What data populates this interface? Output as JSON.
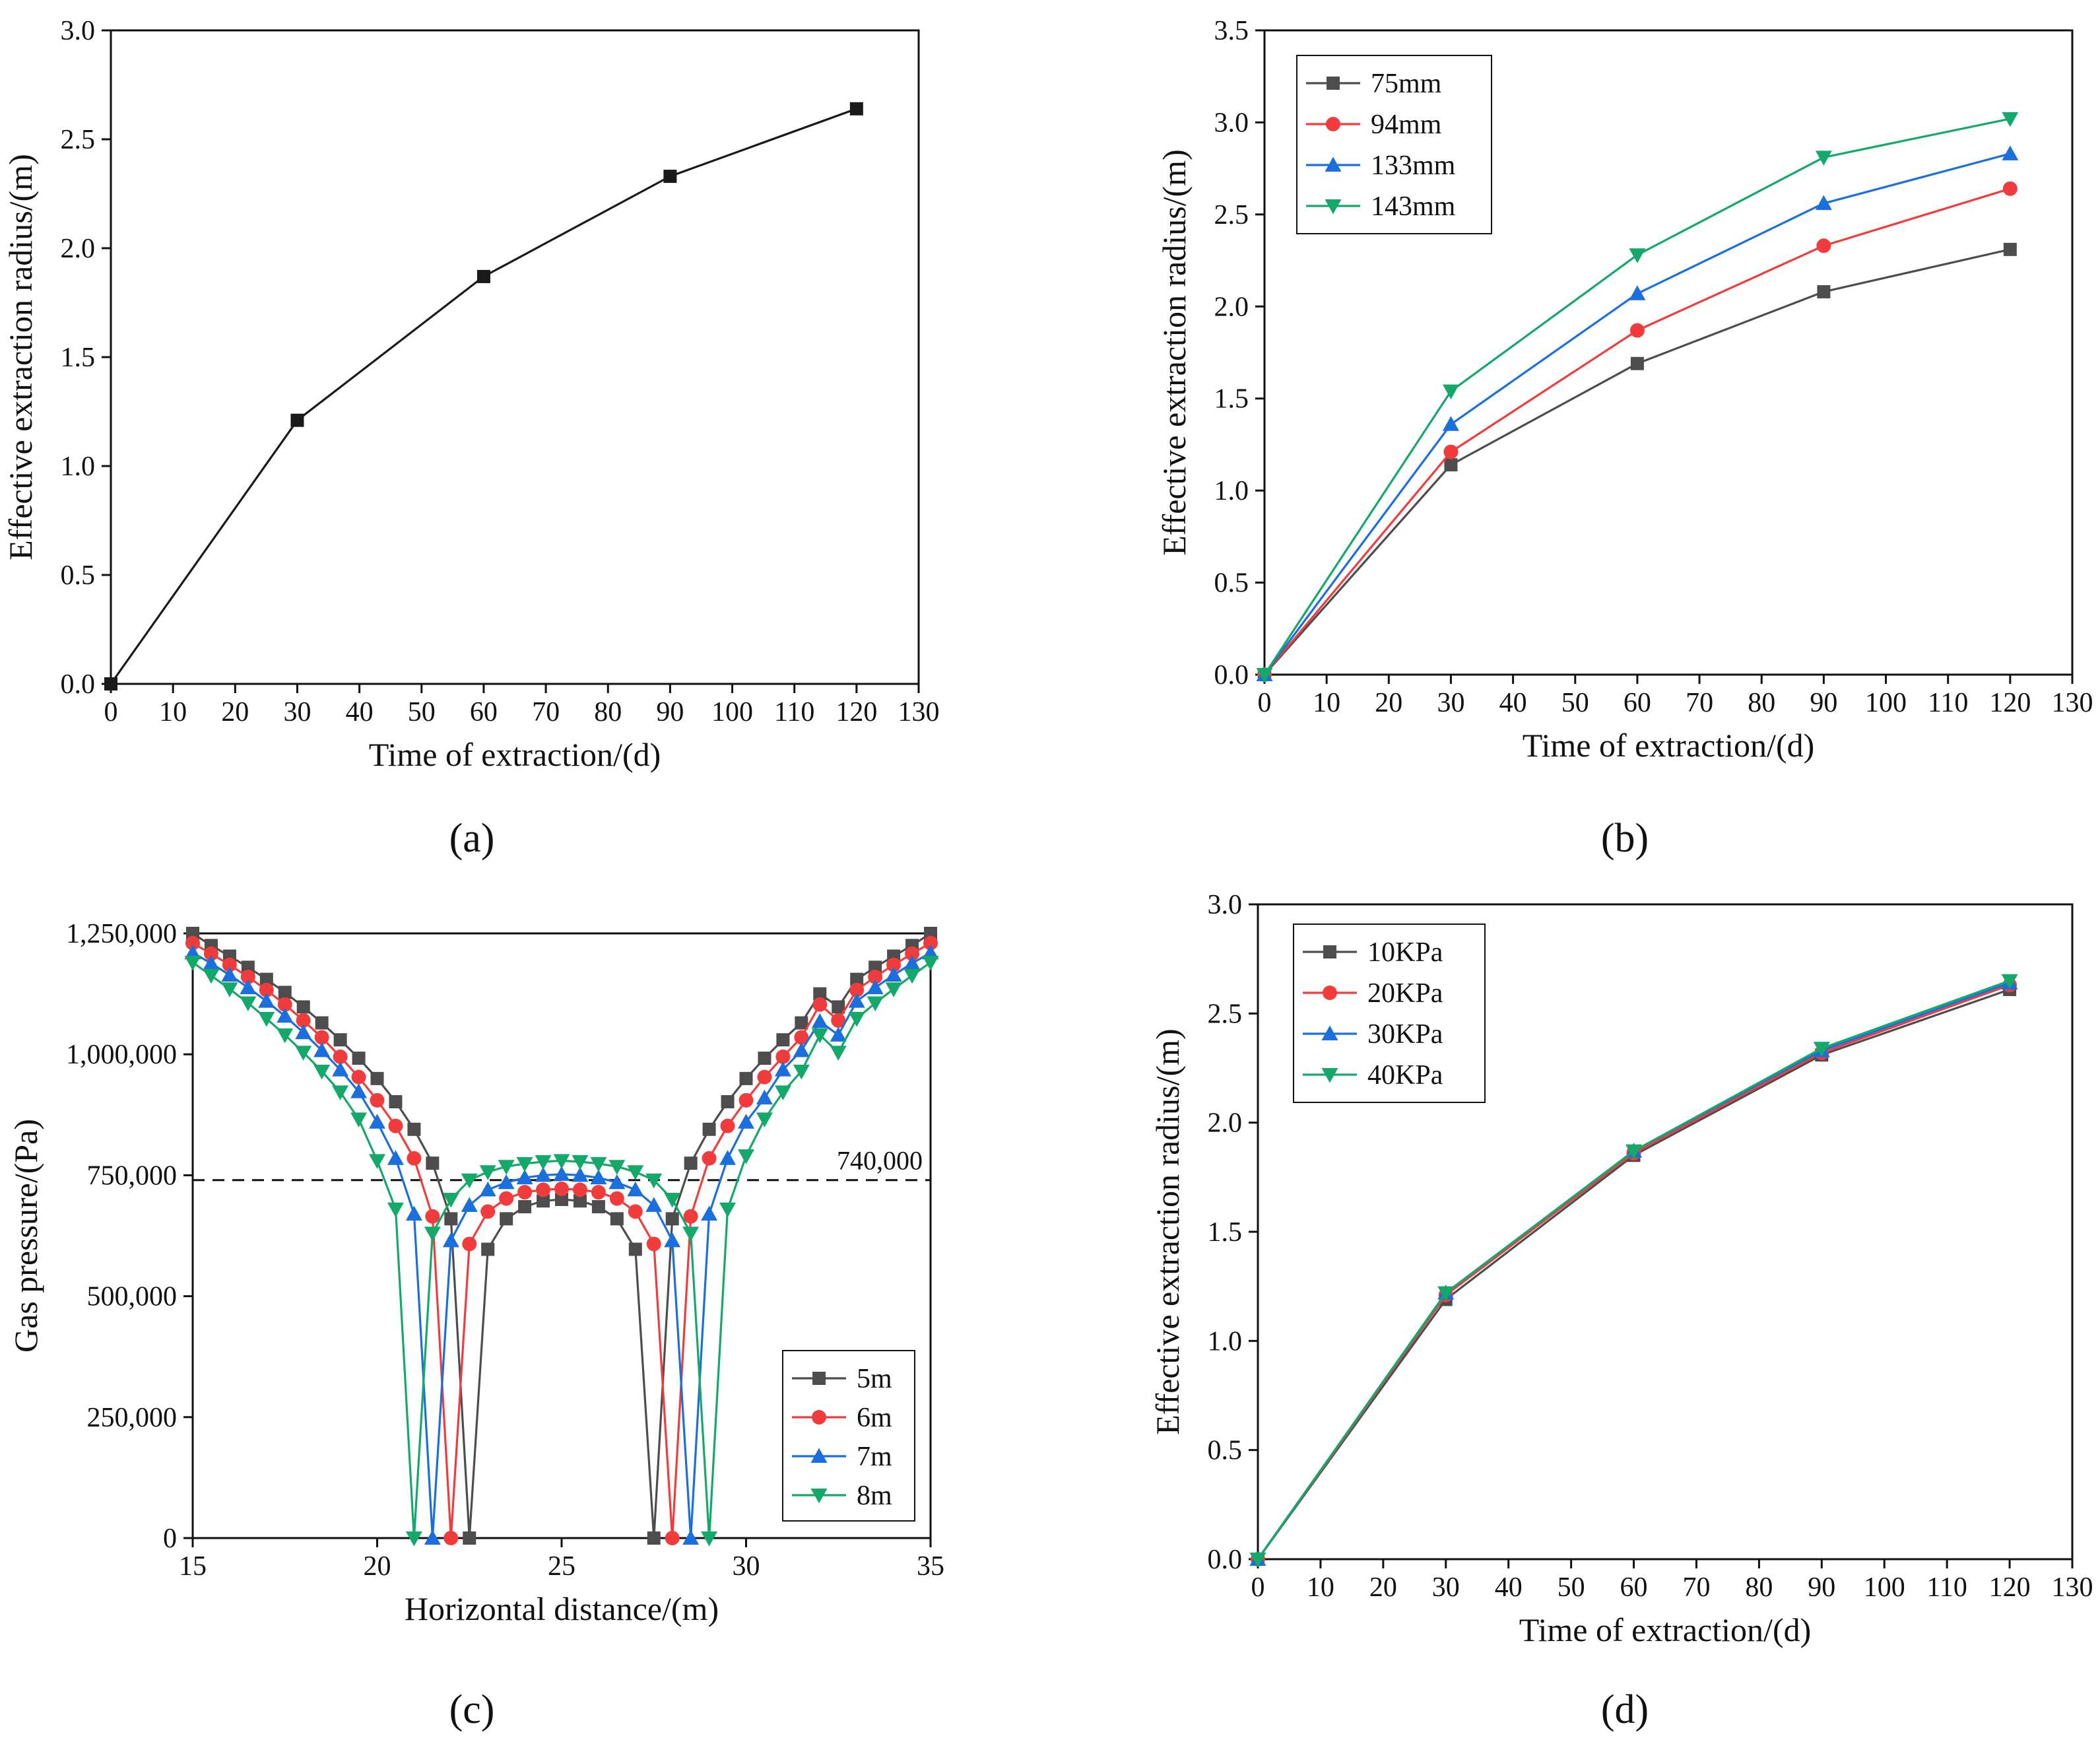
{
  "figure": {
    "panel_labels": [
      "(a)",
      "(b)",
      "(c)",
      "(d)"
    ],
    "colors": {
      "axis": "#111111",
      "black": "#1a1a1a",
      "gray": "#4d4d4d",
      "red": "#f03c3c",
      "blue": "#1a6fdc",
      "green": "#14a86a"
    }
  },
  "chart_data": [
    {
      "panel": "(a)",
      "type": "line",
      "xlabel": "Time of extraction/(d)",
      "ylabel": "Effective extraction radius/(m)",
      "xlim": [
        0,
        130
      ],
      "ylim": [
        0,
        3.0
      ],
      "xticks": [
        0,
        10,
        20,
        30,
        40,
        50,
        60,
        70,
        80,
        90,
        100,
        110,
        120,
        130
      ],
      "yticks": [
        0,
        0.5,
        1.0,
        1.5,
        2.0,
        2.5,
        3.0
      ],
      "xtick_labels": [
        "0",
        "10",
        "20",
        "30",
        "40",
        "50",
        "60",
        "70",
        "80",
        "90",
        "100",
        "110",
        "120",
        "130"
      ],
      "ytick_labels": [
        "0.0",
        "0.5",
        "1.0",
        "1.5",
        "2.0",
        "2.5",
        "3.0"
      ],
      "legend": null,
      "series": [
        {
          "name": "radius",
          "color": "#1a1a1a",
          "marker": "square",
          "x": [
            0,
            30,
            60,
            90,
            120
          ],
          "y": [
            0,
            1.21,
            1.87,
            2.33,
            2.64
          ]
        }
      ]
    },
    {
      "panel": "(b)",
      "type": "line",
      "xlabel": "Time of extraction/(d)",
      "ylabel": "Effective extraction radius/(m)",
      "xlim": [
        0,
        130
      ],
      "ylim": [
        0,
        3.5
      ],
      "xticks": [
        0,
        10,
        20,
        30,
        40,
        50,
        60,
        70,
        80,
        90,
        100,
        110,
        120,
        130
      ],
      "yticks": [
        0,
        0.5,
        1.0,
        1.5,
        2.0,
        2.5,
        3.0,
        3.5
      ],
      "xtick_labels": [
        "0",
        "10",
        "20",
        "30",
        "40",
        "50",
        "60",
        "70",
        "80",
        "90",
        "100",
        "110",
        "120",
        "130"
      ],
      "ytick_labels": [
        "0.0",
        "0.5",
        "1.0",
        "1.5",
        "2.0",
        "2.5",
        "3.0",
        "3.5"
      ],
      "legend": "top-left",
      "series": [
        {
          "name": "75mm",
          "color": "#4d4d4d",
          "marker": "square",
          "x": [
            0,
            30,
            60,
            90,
            120
          ],
          "y": [
            0,
            1.14,
            1.69,
            2.08,
            2.31
          ]
        },
        {
          "name": "94mm",
          "color": "#f03c3c",
          "marker": "circle",
          "x": [
            0,
            30,
            60,
            90,
            120
          ],
          "y": [
            0,
            1.21,
            1.87,
            2.33,
            2.64
          ]
        },
        {
          "name": "133mm",
          "color": "#1a6fdc",
          "marker": "triangle-up",
          "x": [
            0,
            30,
            60,
            90,
            120
          ],
          "y": [
            0,
            1.36,
            2.07,
            2.56,
            2.83
          ]
        },
        {
          "name": "143mm",
          "color": "#14a86a",
          "marker": "triangle-down",
          "x": [
            0,
            30,
            60,
            90,
            120
          ],
          "y": [
            0,
            1.54,
            2.28,
            2.81,
            3.02
          ]
        }
      ]
    },
    {
      "panel": "(c)",
      "type": "line",
      "xlabel": "Horizontal distance/(m)",
      "ylabel": "Gas pressure/(Pa)",
      "xlim": [
        15,
        35
      ],
      "ylim": [
        0,
        1250000
      ],
      "xticks": [
        15,
        20,
        25,
        30,
        35
      ],
      "yticks": [
        0,
        250000,
        500000,
        750000,
        1000000,
        1250000
      ],
      "xtick_labels": [
        "15",
        "20",
        "25",
        "30",
        "35"
      ],
      "ytick_labels": [
        "0",
        "250,000",
        "500,000",
        "750,000",
        "1,000,000",
        "1,250,000"
      ],
      "legend": "bottom-right",
      "reference_line": {
        "y": 740000,
        "label": "740,000"
      },
      "series": [
        {
          "name": "5m",
          "color": "#4d4d4d",
          "marker": "square",
          "x": [
            15,
            15.5,
            16,
            16.5,
            17,
            17.5,
            18,
            18.5,
            19,
            19.5,
            20,
            20.5,
            21,
            21.5,
            22,
            22.5,
            23,
            23.5,
            24,
            24.5,
            25,
            25.5,
            26,
            26.5,
            27,
            27.5,
            28,
            28.5,
            29,
            29.5,
            30,
            30.5,
            31,
            31.5,
            32,
            32.5,
            33,
            33.5,
            34,
            34.5,
            35
          ],
          "y": [
            1250000,
            1225000,
            1203000,
            1180000,
            1155000,
            1128000,
            1098000,
            1065000,
            1030000,
            992000,
            950000,
            902000,
            845000,
            775000,
            660000,
            0,
            597000,
            660000,
            685000,
            697000,
            700000,
            697000,
            685000,
            660000,
            597000,
            0,
            660000,
            775000,
            845000,
            902000,
            950000,
            992000,
            1030000,
            1065000,
            1125000,
            1098000,
            1155000,
            1180000,
            1203000,
            1225000,
            1250000
          ]
        },
        {
          "name": "6m",
          "color": "#f03c3c",
          "marker": "circle",
          "x": [
            15,
            15.5,
            16,
            16.5,
            17,
            17.5,
            18,
            18.5,
            19,
            19.5,
            20,
            20.5,
            21,
            21.5,
            22,
            22.5,
            23,
            23.5,
            24,
            24.5,
            25,
            25.5,
            26,
            26.5,
            27,
            27.5,
            28,
            28.5,
            29,
            29.5,
            30,
            30.5,
            31,
            31.5,
            32,
            32.5,
            33,
            33.5,
            34,
            34.5,
            35
          ],
          "y": [
            1230000,
            1208000,
            1185000,
            1160000,
            1133000,
            1103000,
            1070000,
            1035000,
            995000,
            953000,
            905000,
            852000,
            785000,
            665000,
            0,
            608000,
            675000,
            702000,
            715000,
            720000,
            722000,
            720000,
            715000,
            702000,
            675000,
            608000,
            0,
            665000,
            785000,
            852000,
            905000,
            953000,
            995000,
            1035000,
            1103000,
            1070000,
            1133000,
            1160000,
            1185000,
            1208000,
            1230000
          ]
        },
        {
          "name": "7m",
          "color": "#1a6fdc",
          "marker": "triangle-up",
          "x": [
            15,
            15.5,
            16,
            16.5,
            17,
            17.5,
            18,
            18.5,
            19,
            19.5,
            20,
            20.5,
            21,
            21.5,
            22,
            22.5,
            23,
            23.5,
            24,
            24.5,
            25,
            25.5,
            26,
            26.5,
            27,
            27.5,
            28,
            28.5,
            29,
            29.5,
            30,
            30.5,
            31,
            31.5,
            32,
            32.5,
            33,
            33.5,
            34,
            34.5,
            35
          ],
          "y": [
            1210000,
            1188000,
            1164000,
            1138000,
            1110000,
            1079000,
            1045000,
            1008000,
            968000,
            923000,
            860000,
            785000,
            670000,
            0,
            615000,
            688000,
            720000,
            735000,
            745000,
            750000,
            752000,
            750000,
            745000,
            735000,
            720000,
            688000,
            615000,
            0,
            670000,
            785000,
            860000,
            910000,
            968000,
            1008000,
            1068000,
            1040000,
            1110000,
            1138000,
            1164000,
            1188000,
            1210000
          ]
        },
        {
          "name": "8m",
          "color": "#14a86a",
          "marker": "triangle-down",
          "x": [
            15,
            15.5,
            16,
            16.5,
            17,
            17.5,
            18,
            18.5,
            19,
            19.5,
            20,
            20.5,
            21,
            21.5,
            22,
            22.5,
            23,
            23.5,
            24,
            24.5,
            25,
            25.5,
            26,
            26.5,
            27,
            27.5,
            28,
            28.5,
            29,
            29.5,
            30,
            30.5,
            31,
            31.5,
            32,
            32.5,
            33,
            33.5,
            34,
            34.5,
            35
          ],
          "y": [
            1190000,
            1163000,
            1135000,
            1106000,
            1074000,
            1040000,
            1004000,
            965000,
            922000,
            866000,
            780000,
            680000,
            0,
            630000,
            700000,
            740000,
            757000,
            768000,
            774000,
            778000,
            780000,
            778000,
            774000,
            768000,
            757000,
            740000,
            700000,
            630000,
            0,
            680000,
            790000,
            866000,
            922000,
            965000,
            1040000,
            1004000,
            1074000,
            1106000,
            1135000,
            1163000,
            1190000
          ]
        }
      ]
    },
    {
      "panel": "(d)",
      "type": "line",
      "xlabel": "Time of extraction/(d)",
      "ylabel": "Effective extraction radius/(m)",
      "xlim": [
        0,
        130
      ],
      "ylim": [
        0,
        3.0
      ],
      "xticks": [
        0,
        10,
        20,
        30,
        40,
        50,
        60,
        70,
        80,
        90,
        100,
        110,
        120,
        130
      ],
      "yticks": [
        0,
        0.5,
        1.0,
        1.5,
        2.0,
        2.5,
        3.0
      ],
      "xtick_labels": [
        "0",
        "10",
        "20",
        "30",
        "40",
        "50",
        "60",
        "70",
        "80",
        "90",
        "100",
        "110",
        "120",
        "130"
      ],
      "ytick_labels": [
        "0.0",
        "0.5",
        "1.0",
        "1.5",
        "2.0",
        "2.5",
        "3.0"
      ],
      "legend": "top-left",
      "series": [
        {
          "name": "10KPa",
          "color": "#4d4d4d",
          "marker": "square",
          "x": [
            0,
            30,
            60,
            90,
            120
          ],
          "y": [
            0,
            1.19,
            1.85,
            2.31,
            2.61
          ]
        },
        {
          "name": "20KPa",
          "color": "#f03c3c",
          "marker": "circle",
          "x": [
            0,
            30,
            60,
            90,
            120
          ],
          "y": [
            0,
            1.21,
            1.86,
            2.32,
            2.63
          ]
        },
        {
          "name": "30KPa",
          "color": "#1a6fdc",
          "marker": "triangle-up",
          "x": [
            0,
            30,
            60,
            90,
            120
          ],
          "y": [
            0,
            1.22,
            1.87,
            2.33,
            2.64
          ]
        },
        {
          "name": "40KPa",
          "color": "#14a86a",
          "marker": "triangle-down",
          "x": [
            0,
            30,
            60,
            90,
            120
          ],
          "y": [
            0,
            1.22,
            1.87,
            2.34,
            2.65
          ]
        }
      ]
    }
  ]
}
